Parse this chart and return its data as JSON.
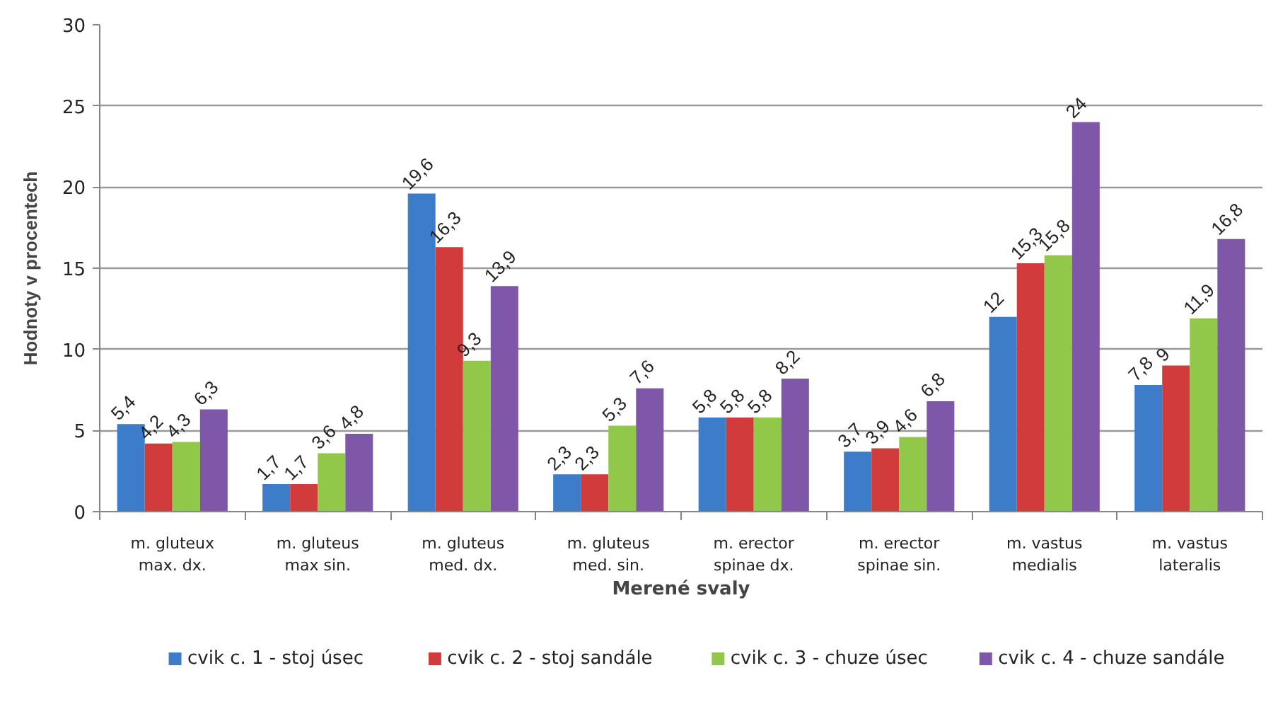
{
  "chart_data": {
    "type": "bar",
    "xlabel": "Merené svaly",
    "ylabel": "Hodnoty v procentech",
    "categories": [
      "m. gluteux\nmax. dx.",
      "m. gluteus\nmax sin.",
      "m. gluteus\nmed. dx.",
      "m. gluteus\nmed. sin.",
      "m. erector\nspinae dx.",
      "m. erector\nspinae sin.",
      "m. vastus\nmedialis",
      "m. vastus\nlateralis"
    ],
    "series": [
      {
        "name": "cvik c. 1 - stoj úsec",
        "color": "#3d7cc9",
        "values": [
          5.4,
          1.7,
          19.6,
          2.3,
          5.8,
          3.7,
          12,
          7.8
        ],
        "value_labels": [
          "5,4",
          "1,7",
          "19,6",
          "2,3",
          "5,8",
          "3,7",
          "12",
          "7,8"
        ]
      },
      {
        "name": "cvik c. 2 - stoj sandále",
        "color": "#d13b3b",
        "values": [
          4.2,
          1.7,
          16.3,
          2.3,
          5.8,
          3.9,
          15.3,
          9
        ],
        "value_labels": [
          "4,2",
          "1,7",
          "16,3",
          "2,3",
          "5,8",
          "3,9",
          "15,3",
          "9"
        ]
      },
      {
        "name": "cvik c. 3 - chuze úsec",
        "color": "#92c84a",
        "values": [
          4.3,
          3.6,
          9.3,
          5.3,
          5.8,
          4.6,
          15.8,
          11.9
        ],
        "value_labels": [
          "4,3",
          "3,6",
          "9,3",
          "5,3",
          "5,8",
          "4,6",
          "15,8",
          "11,9"
        ]
      },
      {
        "name": "cvik c. 4 - chuze sandále",
        "color": "#7f57a8",
        "values": [
          6.3,
          4.8,
          13.9,
          7.6,
          8.2,
          6.8,
          24,
          16.8
        ],
        "value_labels": [
          "6,3",
          "4,8",
          "13,9",
          "7,6",
          "8,2",
          "6,8",
          "24",
          "16,8"
        ]
      }
    ],
    "ylim": [
      0,
      30
    ],
    "yticks": [
      0,
      5,
      10,
      15,
      20,
      25,
      30
    ],
    "grid": "y",
    "legend": "bottom"
  }
}
